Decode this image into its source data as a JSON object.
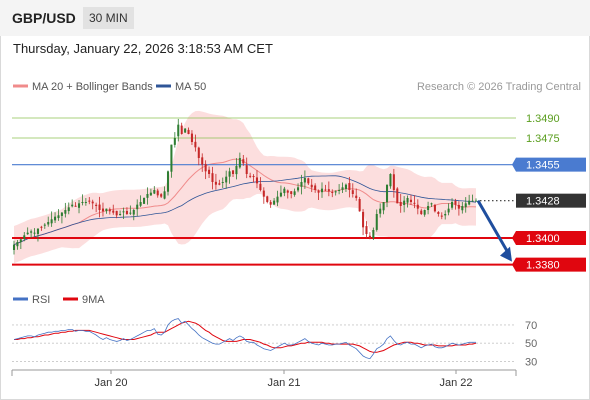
{
  "header": {
    "symbol": "GBP/USD",
    "timeframe": "30 MIN"
  },
  "timestamp": "Thursday, January 22, 2026 3:18:53 AM CET",
  "source": "Research © 2026 Trading Central",
  "colors": {
    "bollinger": "#f08b8b",
    "ma50": "#2f5597",
    "resistance_green": "#8cc152",
    "resistance_blue": "#4a7bd0",
    "support_red": "#e0060f",
    "rsi": "#4472c4",
    "rsi_ma": "#e0060f",
    "current_price": "#333333",
    "candle_up": "#2e7d32",
    "candle_down": "#c62828"
  },
  "chart_data": [
    {
      "type": "candlestick",
      "title": "",
      "legend": [
        {
          "name": "MA 20 + Bollinger Bands",
          "color": "#f08b8b"
        },
        {
          "name": "MA 50",
          "color": "#2f5597"
        }
      ],
      "legend_position": "top-left",
      "x_ticks": [
        "Jan 20",
        "Jan 21",
        "Jan 22"
      ],
      "ylim": [
        1.337,
        1.3505
      ],
      "levels": [
        {
          "label": "1.3490",
          "value": 1.349,
          "kind": "resistance",
          "color": "#8cc152"
        },
        {
          "label": "1.3475",
          "value": 1.3475,
          "kind": "resistance",
          "color": "#8cc152"
        },
        {
          "label": "1.3455",
          "value": 1.3455,
          "kind": "resistance",
          "color": "#4a7bd0"
        },
        {
          "label": "1.3428",
          "value": 1.3428,
          "kind": "current",
          "color": "#333333"
        },
        {
          "label": "1.3400",
          "value": 1.34,
          "kind": "support",
          "color": "#e0060f"
        },
        {
          "label": "1.3380",
          "value": 1.338,
          "kind": "support",
          "color": "#e0060f"
        }
      ],
      "forecast": {
        "from": 1.3428,
        "to": 1.338
      },
      "close": [
        1.3395,
        1.3397,
        1.3399,
        1.3402,
        1.3404,
        1.3405,
        1.3404,
        1.3407,
        1.3408,
        1.341,
        1.3412,
        1.3414,
        1.3416,
        1.3417,
        1.3419,
        1.3421,
        1.3423,
        1.3425,
        1.3424,
        1.3426,
        1.3427,
        1.3427,
        1.3428,
        1.3426,
        1.3424,
        1.3421,
        1.342,
        1.3422,
        1.342,
        1.3419,
        1.3417,
        1.3418,
        1.342,
        1.3418,
        1.3419,
        1.3421,
        1.3425,
        1.3427,
        1.343,
        1.3433,
        1.3434,
        1.3436,
        1.3432,
        1.3431,
        1.3435,
        1.345,
        1.347,
        1.3475,
        1.3485,
        1.3478,
        1.3482,
        1.3478,
        1.3472,
        1.3468,
        1.346,
        1.3455,
        1.345,
        1.3448,
        1.3442,
        1.344,
        1.344,
        1.3442,
        1.3446,
        1.345,
        1.3448,
        1.3454,
        1.346,
        1.3456,
        1.3448,
        1.3446,
        1.3446,
        1.3441,
        1.3436,
        1.3431,
        1.3427,
        1.3425,
        1.3428,
        1.3431,
        1.3434,
        1.3437,
        1.3434,
        1.3433,
        1.3435,
        1.3438,
        1.3442,
        1.3445,
        1.3441,
        1.3438,
        1.3436,
        1.3434,
        1.3437,
        1.3436,
        1.3435,
        1.3434,
        1.3435,
        1.3436,
        1.3438,
        1.344,
        1.3436,
        1.3433,
        1.343,
        1.342,
        1.3408,
        1.3403,
        1.34,
        1.3406,
        1.3418,
        1.3422,
        1.3427,
        1.344,
        1.3448,
        1.3436,
        1.3426,
        1.3424,
        1.3428,
        1.343,
        1.3427,
        1.3426,
        1.3422,
        1.3418,
        1.3421,
        1.3424,
        1.3426,
        1.342,
        1.3418,
        1.3416,
        1.3418,
        1.3422,
        1.3427,
        1.3425,
        1.3422,
        1.3424,
        1.3426,
        1.3428,
        1.3428,
        1.3428
      ]
    },
    {
      "type": "line",
      "title": "",
      "legend": [
        {
          "name": "RSI",
          "color": "#4472c4"
        },
        {
          "name": "9MA",
          "color": "#e0060f"
        }
      ],
      "y_ticks": [
        "70",
        "50",
        "30"
      ],
      "ylim": [
        25,
        82
      ],
      "rsi": [
        54,
        55,
        56,
        57,
        58,
        58,
        57,
        59,
        60,
        61,
        62,
        62,
        63,
        63,
        64,
        64,
        65,
        65,
        63,
        64,
        64,
        63,
        63,
        61,
        59,
        56,
        54,
        56,
        54,
        53,
        52,
        53,
        55,
        53,
        54,
        56,
        58,
        60,
        62,
        64,
        64,
        66,
        60,
        59,
        62,
        70,
        74,
        76,
        77,
        72,
        74,
        70,
        66,
        63,
        59,
        56,
        54,
        52,
        50,
        49,
        49,
        51,
        53,
        55,
        53,
        56,
        58,
        56,
        52,
        51,
        51,
        48,
        46,
        44,
        43,
        42,
        44,
        46,
        48,
        50,
        48,
        48,
        49,
        51,
        53,
        55,
        52,
        50,
        49,
        48,
        50,
        49,
        48,
        48,
        49,
        49,
        50,
        51,
        48,
        46,
        44,
        40,
        36,
        34,
        33,
        38,
        44,
        46,
        49,
        55,
        58,
        53,
        49,
        48,
        50,
        51,
        49,
        49,
        47,
        45,
        47,
        48,
        49,
        46,
        45,
        45,
        46,
        48,
        50,
        49,
        48,
        49,
        50,
        51,
        51,
        51
      ],
      "ma9": [
        54,
        54,
        55,
        55,
        56,
        56,
        57,
        57,
        58,
        59,
        59,
        60,
        61,
        61,
        62,
        62,
        63,
        63,
        64,
        64,
        64,
        64,
        64,
        63,
        62,
        61,
        60,
        59,
        58,
        57,
        56,
        55,
        54,
        54,
        54,
        54,
        55,
        56,
        57,
        58,
        59,
        61,
        62,
        62,
        62,
        64,
        66,
        68,
        70,
        72,
        73,
        74,
        73,
        72,
        70,
        67,
        64,
        62,
        59,
        57,
        55,
        53,
        52,
        52,
        52,
        52,
        53,
        54,
        54,
        54,
        53,
        52,
        51,
        49,
        48,
        46,
        45,
        45,
        45,
        46,
        47,
        47,
        48,
        49,
        50,
        50,
        51,
        51,
        51,
        51,
        51,
        50,
        50,
        49,
        49,
        49,
        49,
        49,
        49,
        49,
        48,
        47,
        45,
        43,
        41,
        40,
        40,
        41,
        42,
        44,
        46,
        48,
        49,
        50,
        51,
        51,
        51,
        50,
        50,
        49,
        48,
        48,
        48,
        48,
        47,
        47,
        47,
        47,
        47,
        48,
        48,
        48,
        48,
        49,
        49,
        50
      ]
    }
  ]
}
